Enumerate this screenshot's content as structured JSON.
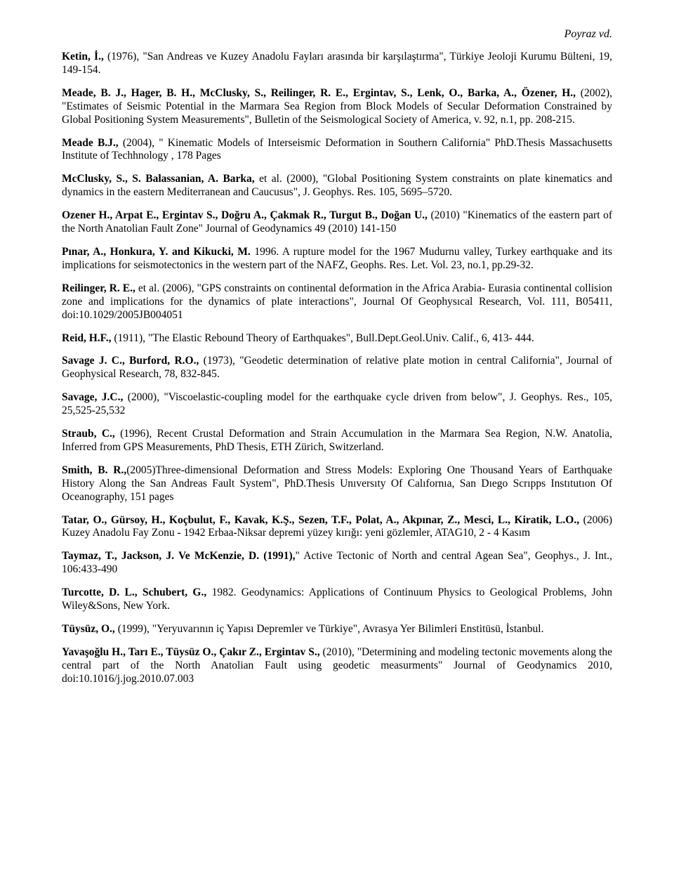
{
  "running_head": "Poyraz vd.",
  "refs": [
    "<span class=\"bold\">Ketin, İ.,</span> (1976), \"San Andreas ve Kuzey Anadolu Fayları arasında bir karşılaştırma\", Türkiye Jeoloji Kurumu Bülteni, 19, 149-154.",
    "<span class=\"bold\">Meade, B. J., Hager, B. H., McClusky, S., Reilinger, R. E., Ergintav, S., Lenk, O., Barka, A., Özener, H.,</span> (2002), \"Estimates of Seismic Potential in the Marmara Sea Region from Block Models of Secular Deformation Constrained by Global Positioning System Measurements\", Bulletin of the Seismological Society of America, v. 92, n.1, pp. 208-215.",
    "<span class=\"bold\">Meade B.J.,</span> (2004), \" Kinematic Models of Interseismic Deformation in Southern California\" PhD.Thesis Massachusetts Institute of Techhnology , 178 Pages",
    "<span class=\"bold\">McClusky, S., S. Balassanian, A. Barka,</span> et al. (2000), \"Global Positioning System constraints on plate kinematics and dynamics in the eastern Mediterranean and Caucusus\", J. Geophys. Res. 105, 5695–5720.",
    "<span class=\"bold\">Ozener H., Arpat E., Ergintav S., Doğru A., Çakmak R., Turgut B., Doğan U.,</span> (2010) \"Kinematics of the eastern part of the North Anatolian Fault Zone\" Journal of Geodynamics 49 (2010) 141-150",
    "<span class=\"bold\">Pınar, A., Honkura, Y. and Kikucki, M.</span> 1996. A rupture model for the 1967 Mudurnu valley, Turkey earthquake and its implications for seismotectonics in the western part of the NAFZ, Geophs. Res. Let. Vol. 23, no.1, pp.29-32.",
    "<span class=\"bold\">Reilinger, R. E.,</span> et al. (2006), \"GPS constraints on continental deformation in the Africa Arabia- Eurasia continental collision zone and implications for the dynamics of plate interactions\", Journal Of Geophysıcal Research, Vol. 111, B05411, doi:10.1029/2005JB004051",
    "<span class=\"bold\">Reid, H.F.,</span> (1911), \"The Elastic Rebound Theory of Earthquakes\", Bull.Dept.Geol.Univ. Calif., 6, 413- 444.",
    "<span class=\"bold\">Savage J. C., Burford, R.O.,</span> (1973), \"Geodetic determination of relative plate motion in central California\", Journal of Geophysical Research, 78, 832-845.",
    "<span class=\"bold\">Savage, J.C.,</span> (2000), \"Viscoelastic-coupling model for the earthquake cycle driven from below\", J. Geophys. Res., 105, 25,525-25,532",
    "<span class=\"bold\">Straub, C.,</span> (1996), Recent Crustal Deformation and Strain Accumulation in the Marmara Sea Region, N.W. Anatolia, Inferred from GPS Measurements, PhD Thesis, ETH Zürich, Switzerland.",
    "<span class=\"bold\">Smith, B. R.,</span>(2005)Three-dimensional Deformation and Stress Models: Exploring One Thousand Years of Earthquake History Along the San Andreas Fault System\", PhD.Thesis Unıversıty Of Calıfornıa, San Dıego Scrıpps Instıtutıon Of Oceanography, 151 pages",
    "<span class=\"bold\">Tatar, O., Gürsoy, H.,  Koçbulut, F., Kavak, K.Ş., Sezen, T.F., Polat, A.,  Akpınar, Z., Mesci, L., Kiratik, L.O.,</span> (2006) Kuzey Anadolu Fay Zonu - 1942 Erbaa-Niksar depremi yüzey kırığı: yeni gözlemler, ATAG10, 2 - 4 Kasım",
    "<span class=\"bold\">Taymaz, T., Jackson, J. Ve McKenzie, D. (1991),</span>\" Active Tectonic of North and central Agean Sea\", Geophys., J. Int., 106:433-490",
    "<span class=\"bold\">Turcotte, D. L., Schubert, G.,</span> 1982. Geodynamics: Applications of Continuum Physics to Geological Problems, John Wiley&Sons, New York.",
    "<span class=\"bold\">Tüysüz, O.,</span> (1999), \"Yeryuvarının iç Yapısı Depremler ve Türkiye\", Avrasya Yer Bilimleri Enstitüsü, İstanbul.",
    "<span class=\"bold\">Yavaşoğlu H., Tarı E., Tüysüz O., Çakır Z., Ergintav S.,</span> (2010), \"Determining and modeling tectonic movements along the central part of the North Anatolian Fault using geodetic measurments\" Journal of Geodynamics 2010, doi:10.1016/j.jog.2010.07.003"
  ]
}
